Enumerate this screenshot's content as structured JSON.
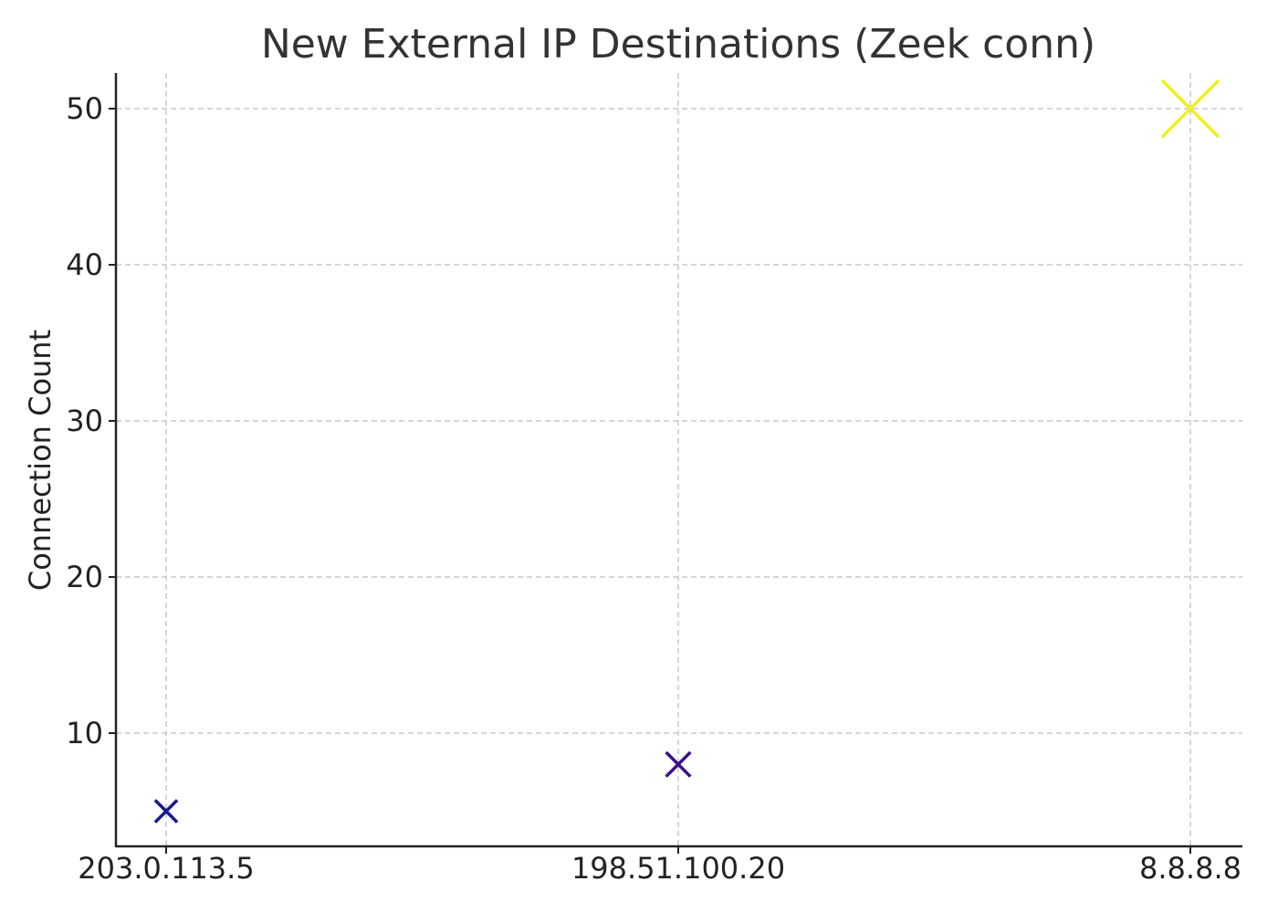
{
  "chart_data": {
    "type": "scatter",
    "title": "New External IP Destinations (Zeek conn)",
    "xlabel": "",
    "ylabel": "Connection Count",
    "categories": [
      "203.0.113.5",
      "198.51.100.20",
      "8.8.8.8"
    ],
    "values": [
      5,
      8,
      50
    ],
    "marker": "x",
    "marker_size_scales_with_value": true,
    "point_colors": [
      "#1a1a8c",
      "#3b0f8c",
      "#f0f01e"
    ],
    "ylim": [
      3,
      52
    ],
    "yticks": [
      10,
      20,
      30,
      40,
      50
    ],
    "grid": true,
    "legend": "none"
  }
}
